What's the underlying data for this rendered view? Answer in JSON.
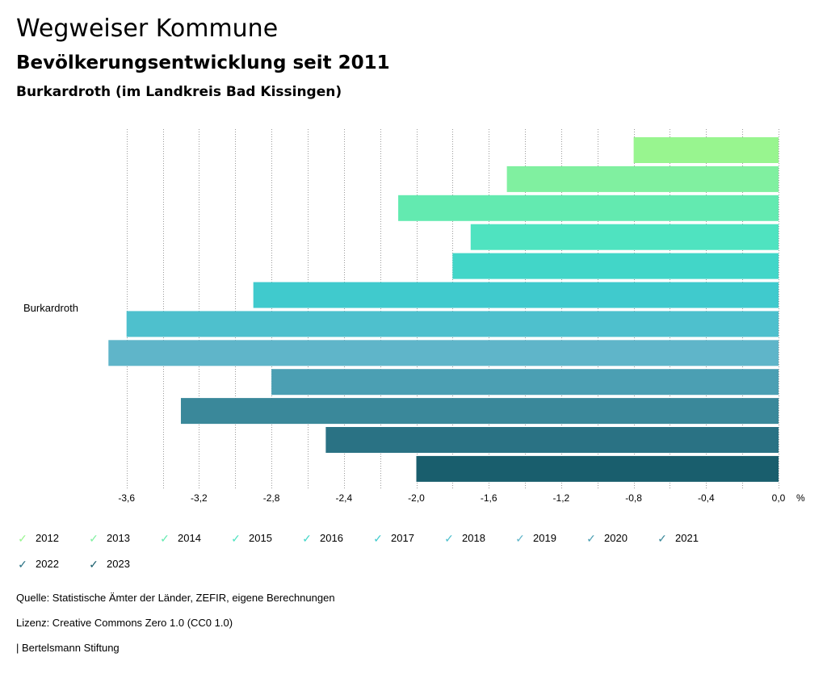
{
  "header": {
    "title": "Wegweiser Kommune",
    "subtitle": "Bevölkerungsentwicklung seit 2011",
    "region": "Burkardroth (im Landkreis Bad Kissingen)"
  },
  "chart_data": {
    "type": "bar",
    "orientation": "horizontal",
    "categories": [
      "Burkardroth"
    ],
    "xlabel": "%",
    "xlim": [
      -3.6,
      0.0
    ],
    "x_ticks": [
      "-3,6",
      "-3,2",
      "-2,8",
      "-2,4",
      "-2,0",
      "-1,6",
      "-1,2",
      "-0,8",
      "-0,4",
      "0,0"
    ],
    "grid": "vertical-dotted",
    "series": [
      {
        "name": "2012",
        "values": [
          -0.8
        ],
        "color": "#98f58f"
      },
      {
        "name": "2013",
        "values": [
          -1.5
        ],
        "color": "#80f0a0"
      },
      {
        "name": "2014",
        "values": [
          -2.1
        ],
        "color": "#63eab0"
      },
      {
        "name": "2015",
        "values": [
          -1.7
        ],
        "color": "#4fe3c0"
      },
      {
        "name": "2016",
        "values": [
          -1.8
        ],
        "color": "#42d6c8"
      },
      {
        "name": "2017",
        "values": [
          -2.9
        ],
        "color": "#40cacd"
      },
      {
        "name": "2018",
        "values": [
          -3.6
        ],
        "color": "#4ec0cd"
      },
      {
        "name": "2019",
        "values": [
          -3.7
        ],
        "color": "#5fb5c9"
      },
      {
        "name": "2020",
        "values": [
          -2.8
        ],
        "color": "#4b9fb3"
      },
      {
        "name": "2021",
        "values": [
          -3.3
        ],
        "color": "#3a889a"
      },
      {
        "name": "2022",
        "values": [
          -2.5
        ],
        "color": "#2a7284"
      },
      {
        "name": "2023",
        "values": [
          -2.0
        ],
        "color": "#195e6d"
      }
    ],
    "legend_position": "bottom-left"
  },
  "footer": {
    "source": "Quelle: Statistische Ämter der Länder, ZEFIR, eigene Berechnungen",
    "license": "Lizenz: Creative Commons Zero 1.0 (CC0 1.0)",
    "publisher": "| Bertelsmann Stiftung"
  }
}
